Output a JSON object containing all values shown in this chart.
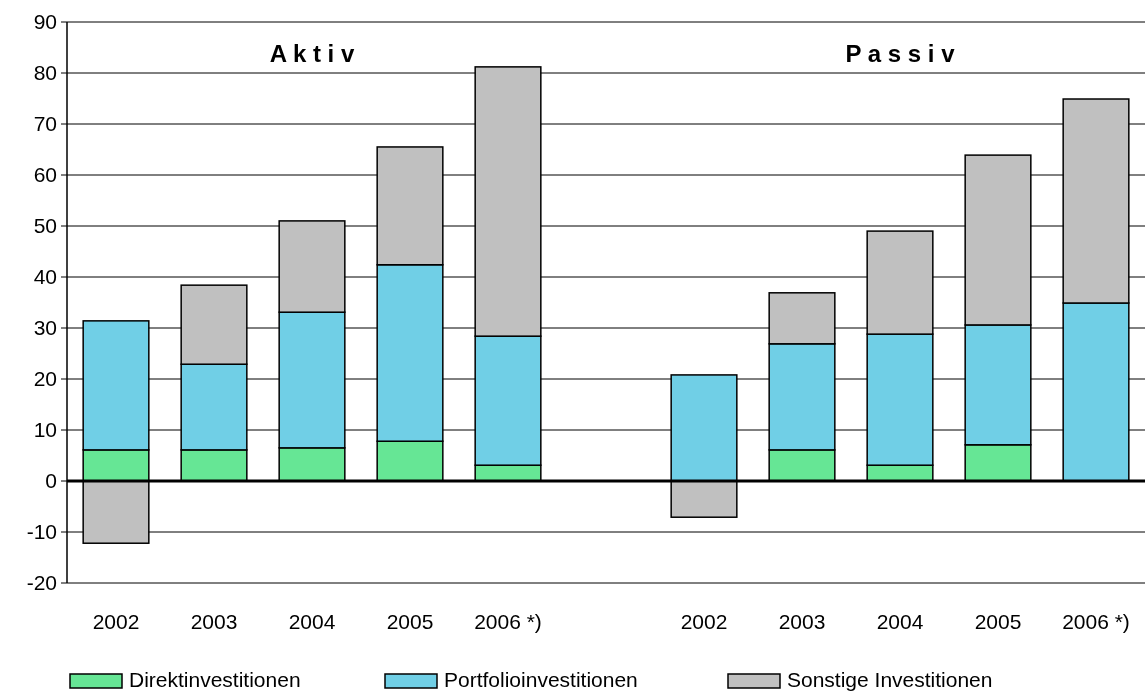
{
  "chart_data": {
    "type": "bar",
    "stacked": true,
    "categories": [
      "2002",
      "2003",
      "2004",
      "2005",
      "2006 *)",
      null,
      "2002",
      "2003",
      "2004",
      "2005",
      "2006 *)"
    ],
    "series": [
      {
        "name": "Direktinvestitionen",
        "color": "#66e695",
        "values": [
          6.1,
          6.1,
          6.5,
          7.8,
          3.1,
          null,
          null,
          6.1,
          3.1,
          7.1,
          0
        ]
      },
      {
        "name": "Portfolioinvestitionen",
        "color": "#70cfe6",
        "values": [
          25.3,
          16.8,
          26.6,
          34.6,
          25.3,
          null,
          20.8,
          20.8,
          25.7,
          23.5,
          34.9
        ]
      },
      {
        "name": "Sonstige Investitionen",
        "color": "#c0c0c0",
        "values": [
          -12.2,
          15.5,
          17.9,
          23.1,
          52.8,
          null,
          -7.1,
          10.0,
          20.2,
          33.3,
          40.0
        ]
      }
    ],
    "annotations": [
      "A k t i v",
      "P a s s i v"
    ],
    "ylim": [
      -20,
      90
    ],
    "yticks": [
      -20,
      -10,
      0,
      10,
      20,
      30,
      40,
      50,
      60,
      70,
      80,
      90
    ],
    "grid": "y",
    "legend": "bottom"
  }
}
